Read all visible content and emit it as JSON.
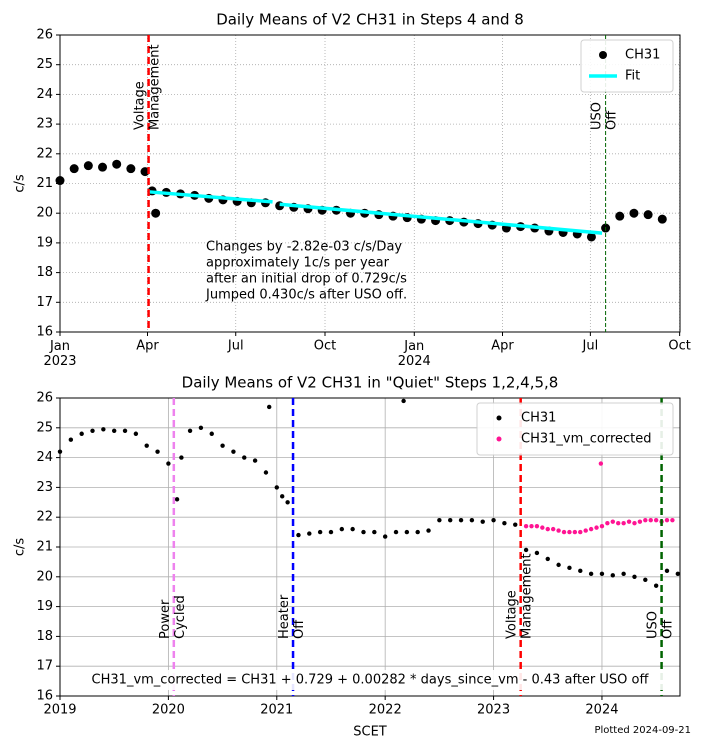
{
  "footer": "Plotted 2024-09-21",
  "chart_data": [
    {
      "type": "scatter",
      "title": "Daily Means of V2 CH31 in Steps 4 and 8",
      "ylabel": "c/s",
      "xlim": [
        2023.0,
        2024.75
      ],
      "ylim": [
        16,
        26
      ],
      "xticks": [
        {
          "value": 2023.0,
          "label": "Jan\n2023"
        },
        {
          "value": 2023.247,
          "label": "Apr"
        },
        {
          "value": 2023.496,
          "label": "Jul"
        },
        {
          "value": 2023.748,
          "label": "Oct"
        },
        {
          "value": 2024.0,
          "label": "Jan\n2024"
        },
        {
          "value": 2024.249,
          "label": "Apr"
        },
        {
          "value": 2024.497,
          "label": "Jul"
        },
        {
          "value": 2024.749,
          "label": "Oct"
        }
      ],
      "yticks": [
        16,
        17,
        18,
        19,
        20,
        21,
        22,
        23,
        24,
        25,
        26
      ],
      "grid": true,
      "grid_style": "dotted",
      "legend": "upper right",
      "series": [
        {
          "name": "CH31",
          "color": "#000000",
          "style": "marker",
          "marker_size": 4.5,
          "x": [
            2023.0,
            2023.04,
            2023.08,
            2023.12,
            2023.16,
            2023.2,
            2023.24,
            2023.26,
            2023.27,
            2023.3,
            2023.34,
            2023.38,
            2023.42,
            2023.46,
            2023.5,
            2023.54,
            2023.58,
            2023.62,
            2023.66,
            2023.7,
            2023.74,
            2023.78,
            2023.82,
            2023.86,
            2023.9,
            2023.94,
            2023.98,
            2024.02,
            2024.06,
            2024.1,
            2024.14,
            2024.18,
            2024.22,
            2024.26,
            2024.3,
            2024.34,
            2024.38,
            2024.42,
            2024.46,
            2024.5,
            2024.54,
            2024.58,
            2024.62,
            2024.66,
            2024.7
          ],
          "values": [
            21.1,
            21.5,
            21.6,
            21.55,
            21.65,
            21.5,
            21.4,
            20.75,
            20.0,
            20.7,
            20.65,
            20.6,
            20.5,
            20.45,
            20.4,
            20.35,
            20.35,
            20.25,
            20.2,
            20.15,
            20.1,
            20.1,
            20.0,
            20.0,
            19.95,
            19.9,
            19.85,
            19.8,
            19.75,
            19.75,
            19.7,
            19.65,
            19.6,
            19.5,
            19.55,
            19.5,
            19.4,
            19.35,
            19.3,
            19.2,
            19.5,
            19.9,
            20.0,
            19.95,
            19.8
          ]
        },
        {
          "name": "Fit",
          "color": "#00ffff",
          "style": "line",
          "x": [
            2023.25,
            2023.6,
            2023.61,
            2023.62,
            2024.53
          ],
          "values": [
            20.72,
            20.38,
            null,
            20.3,
            19.33
          ]
        }
      ],
      "vlines": [
        {
          "x": 2023.25,
          "color": "#ff0000",
          "dash": "7,4",
          "label": [
            "Voltage",
            "Management"
          ]
        },
        {
          "x": 2024.54,
          "color": "#006400",
          "dash": "4,2",
          "label": [
            "USO",
            "Off"
          ]
        }
      ],
      "note": [
        "Changes by -2.82e-03 c/s/Day",
        "approximately 1c/s per year",
        "after an initial drop of 0.729c/s",
        "Jumped 0.430c/s after USO off."
      ]
    },
    {
      "type": "scatter",
      "title": "Daily Means of V2 CH31 in \"Quiet\" Steps 1,2,4,5,8",
      "ylabel": "c/s",
      "xlabel": "SCET",
      "xlim": [
        2019.0,
        2024.72
      ],
      "ylim": [
        16,
        26
      ],
      "xticks": [
        2019,
        2020,
        2021,
        2022,
        2023,
        2024
      ],
      "yticks": [
        16,
        17,
        18,
        19,
        20,
        21,
        22,
        23,
        24,
        25,
        26
      ],
      "grid": true,
      "grid_style": "solid",
      "legend": "upper right",
      "series": [
        {
          "name": "CH31",
          "color": "#000000",
          "style": "marker",
          "marker_size": 2.2,
          "x": [
            2019.0,
            2019.1,
            2019.2,
            2019.3,
            2019.4,
            2019.5,
            2019.6,
            2019.7,
            2019.8,
            2019.9,
            2020.0,
            2020.08,
            2020.12,
            2020.2,
            2020.3,
            2020.4,
            2020.5,
            2020.6,
            2020.7,
            2020.8,
            2020.9,
            2020.93,
            2021.0,
            2021.05,
            2021.1,
            2021.2,
            2021.3,
            2021.4,
            2021.5,
            2021.6,
            2021.7,
            2021.8,
            2021.9,
            2022.0,
            2022.1,
            2022.2,
            2022.17,
            2022.3,
            2022.4,
            2022.5,
            2022.6,
            2022.7,
            2022.8,
            2022.9,
            2023.0,
            2023.1,
            2023.2,
            2023.3,
            2023.4,
            2023.5,
            2023.6,
            2023.7,
            2023.8,
            2023.9,
            2024.0,
            2024.1,
            2024.2,
            2024.3,
            2024.4,
            2024.5,
            2024.6,
            2024.7
          ],
          "values": [
            24.2,
            24.6,
            24.8,
            24.9,
            24.95,
            24.9,
            24.9,
            24.8,
            24.4,
            24.2,
            23.8,
            22.6,
            24.0,
            24.9,
            25.0,
            24.8,
            24.4,
            24.2,
            24.0,
            23.9,
            23.5,
            25.7,
            23.0,
            22.7,
            22.5,
            21.4,
            21.45,
            21.5,
            21.5,
            21.6,
            21.6,
            21.5,
            21.5,
            21.35,
            21.5,
            21.5,
            25.9,
            21.5,
            21.55,
            21.9,
            21.9,
            21.9,
            21.9,
            21.85,
            21.9,
            21.8,
            21.75,
            20.9,
            20.8,
            20.6,
            20.4,
            20.3,
            20.2,
            20.1,
            20.1,
            20.05,
            20.1,
            20.0,
            19.9,
            19.7,
            20.2,
            20.1
          ]
        },
        {
          "name": "CH31_vm_corrected",
          "color": "#ff1493",
          "style": "marker",
          "marker_size": 2.2,
          "x": [
            2023.3,
            2023.35,
            2023.4,
            2023.45,
            2023.5,
            2023.55,
            2023.6,
            2023.65,
            2023.7,
            2023.75,
            2023.8,
            2023.85,
            2023.9,
            2023.95,
            2024.0,
            2024.05,
            2024.1,
            2024.15,
            2024.2,
            2024.25,
            2024.3,
            2024.35,
            2024.4,
            2024.45,
            2024.5,
            2024.55,
            2024.6,
            2024.65,
            2023.99
          ],
          "values": [
            21.7,
            21.7,
            21.7,
            21.65,
            21.6,
            21.6,
            21.55,
            21.5,
            21.5,
            21.5,
            21.5,
            21.55,
            21.6,
            21.65,
            21.7,
            21.8,
            21.85,
            21.8,
            21.8,
            21.85,
            21.8,
            21.85,
            21.9,
            21.9,
            21.9,
            21.85,
            21.9,
            21.9,
            23.8
          ]
        }
      ],
      "vlines": [
        {
          "x": 2020.05,
          "color": "#ee82ee",
          "dash": "7,4",
          "label": [
            "Power",
            "Cycled"
          ]
        },
        {
          "x": 2021.15,
          "color": "#0000ff",
          "dash": "7,4",
          "label": [
            "Heater",
            "Off"
          ]
        },
        {
          "x": 2023.25,
          "color": "#ff0000",
          "dash": "7,4",
          "label": [
            "Voltage",
            "Management"
          ]
        },
        {
          "x": 2024.55,
          "color": "#006400",
          "dash": "7,4",
          "label": [
            "USO",
            "Off"
          ]
        }
      ],
      "note": [
        "CH31_vm_corrected = CH31 + 0.729 + 0.00282 * days_since_vm - 0.43 after USO off"
      ]
    }
  ]
}
